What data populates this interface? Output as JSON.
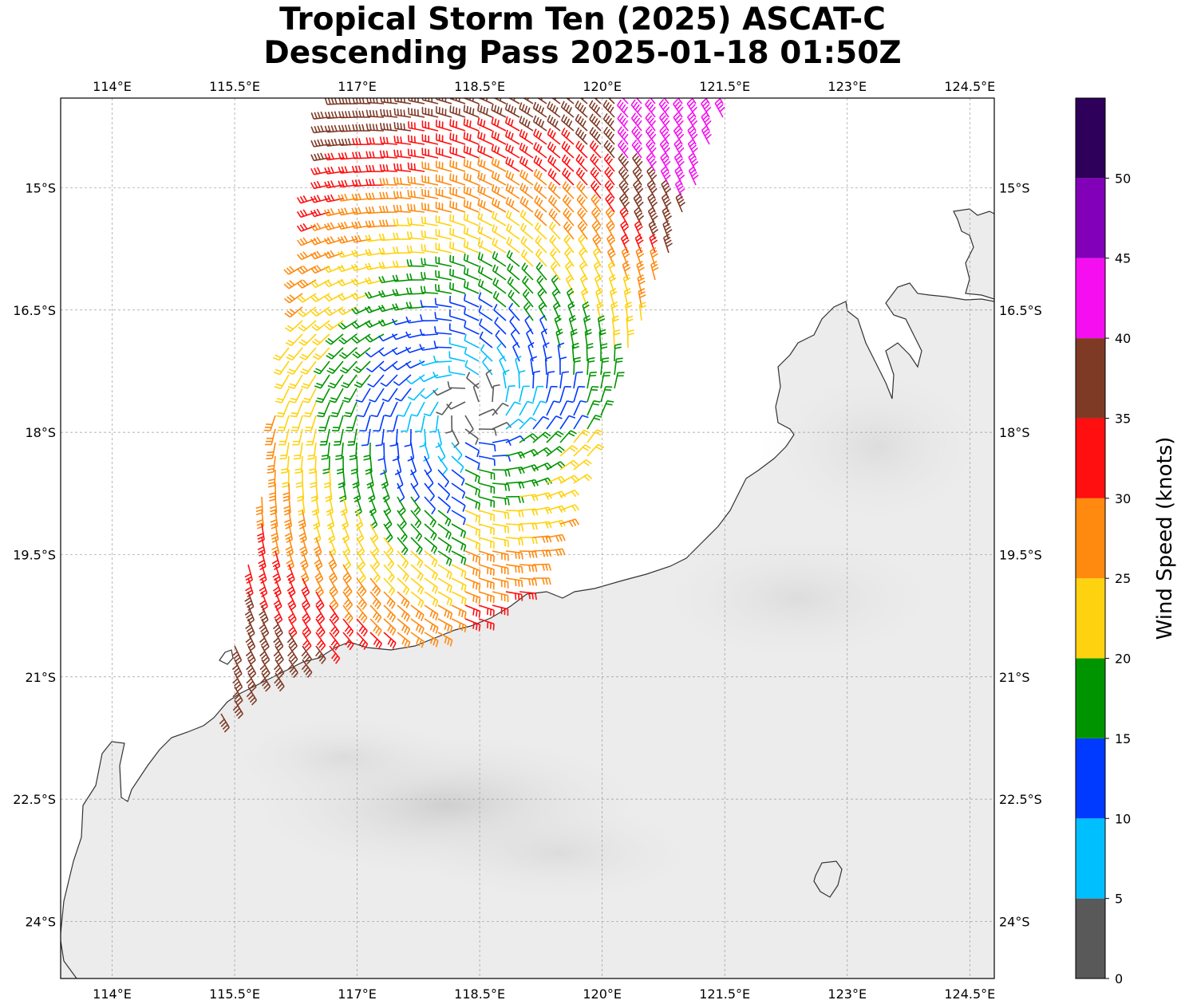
{
  "title": {
    "line1": "Tropical Storm Ten (2025) ASCAT-C",
    "line2": "Descending Pass 2025-01-18 01:50Z"
  },
  "map": {
    "lon_ticks": [
      "114°E",
      "115.5°E",
      "117°E",
      "118.5°E",
      "120°E",
      "121.5°E",
      "123°E",
      "124.5°E"
    ],
    "lon_values": [
      114,
      115.5,
      117,
      118.5,
      120,
      121.5,
      123,
      124.5
    ],
    "lat_ticks": [
      "15°S",
      "16.5°S",
      "18°S",
      "19.5°S",
      "21°S",
      "22.5°S",
      "24°S"
    ],
    "lat_values": [
      -15,
      -16.5,
      -18,
      -19.5,
      -21,
      -22.5,
      -24
    ],
    "lon_range": [
      113.37,
      124.8
    ],
    "lat_range": [
      -24.7,
      -13.9
    ],
    "gridlines": true,
    "background": "grayscale land/cloud imagery",
    "storm_center": {
      "lon": 118.4,
      "lat": -17.7
    }
  },
  "colorbar": {
    "label": "Wind Speed (knots)",
    "ticks": [
      "0",
      "5",
      "10",
      "15",
      "20",
      "25",
      "30",
      "35",
      "40",
      "45",
      "50"
    ],
    "bins": [
      {
        "min": 0,
        "max": 5,
        "color": "#595959"
      },
      {
        "min": 5,
        "max": 10,
        "color": "#00bfff"
      },
      {
        "min": 10,
        "max": 15,
        "color": "#0039ff"
      },
      {
        "min": 15,
        "max": 20,
        "color": "#009500"
      },
      {
        "min": 20,
        "max": 25,
        "color": "#ffd20f"
      },
      {
        "min": 25,
        "max": 30,
        "color": "#ff8a0f"
      },
      {
        "min": 30,
        "max": 35,
        "color": "#ff0f0f"
      },
      {
        "min": 35,
        "max": 40,
        "color": "#7f3a26"
      },
      {
        "min": 40,
        "max": 45,
        "color": "#f50ff0"
      },
      {
        "min": 45,
        "max": 50,
        "color": "#8300b9"
      },
      {
        "min": 50,
        "max": 55,
        "color": "#2e0059"
      }
    ]
  }
}
